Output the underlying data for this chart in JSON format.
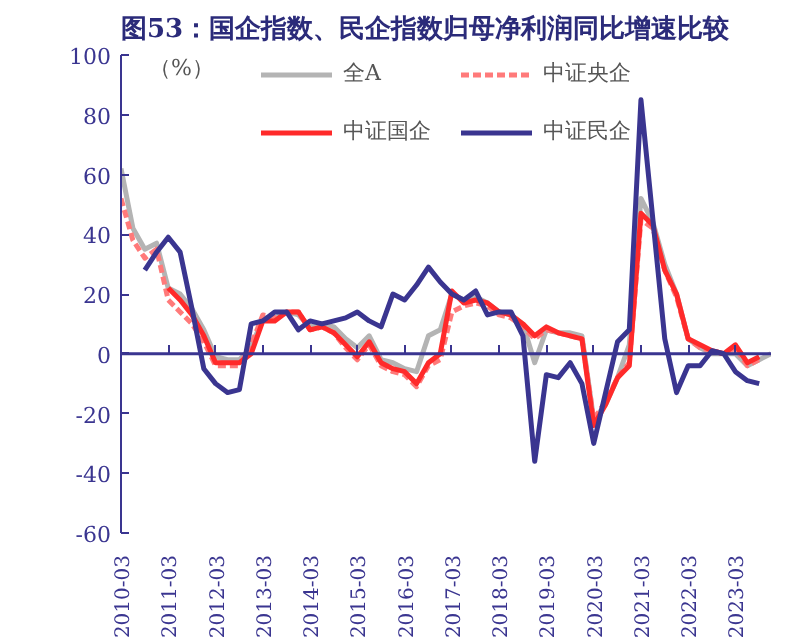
{
  "chart_data": {
    "type": "line",
    "title": "图53：国企指数、民企指数归母净利润同比增速比较",
    "ylabel": "（%）",
    "x": [
      "2010-03",
      "2010-06",
      "2010-09",
      "2010-12",
      "2011-03",
      "2011-06",
      "2011-09",
      "2011-12",
      "2012-03",
      "2012-06",
      "2012-09",
      "2012-12",
      "2013-03",
      "2013-06",
      "2013-09",
      "2013-12",
      "2014-03",
      "2014-06",
      "2014-09",
      "2014-12",
      "2015-03",
      "2015-06",
      "2015-09",
      "2015-12",
      "2016-03",
      "2016-06",
      "2016-09",
      "2016-12",
      "2017-03",
      "2017-06",
      "2017-09",
      "2017-12",
      "2018-03",
      "2018-06",
      "2018-09",
      "2018-12",
      "2019-03",
      "2019-06",
      "2019-09",
      "2019-12",
      "2020-03",
      "2020-06",
      "2020-09",
      "2020-12",
      "2021-03",
      "2021-06",
      "2021-09",
      "2021-12",
      "2022-03",
      "2022-06",
      "2022-09",
      "2022-12",
      "2023-03",
      "2023-06",
      "2023-09",
      "2023-12"
    ],
    "series": [
      {
        "name": "全A",
        "color": "#b4b4b4",
        "line_style": "solid",
        "values": [
          62,
          42,
          35,
          37,
          22,
          20,
          15,
          8,
          -1,
          -2,
          -2,
          2,
          12,
          12,
          14,
          13,
          9,
          10,
          9,
          5,
          2,
          6,
          -2,
          -3,
          -5,
          -6,
          6,
          8,
          20,
          18,
          19,
          17,
          14,
          13,
          10,
          -3,
          8,
          7,
          7,
          6,
          -22,
          -17,
          -8,
          3,
          52,
          44,
          30,
          20,
          5,
          2,
          0,
          0,
          0,
          -4,
          -2,
          0
        ]
      },
      {
        "name": "中证央企",
        "color": "#ff7a7a",
        "line_style": "dashed",
        "values": [
          52,
          38,
          32,
          35,
          18,
          14,
          10,
          4,
          -4,
          -4,
          -4,
          3,
          13,
          12,
          14,
          14,
          8,
          9,
          7,
          2,
          -2,
          3,
          -4,
          -6,
          -7,
          -11,
          -4,
          -2,
          14,
          16,
          17,
          16,
          13,
          12,
          9,
          5,
          8,
          7,
          6,
          5,
          -22,
          -16,
          -8,
          -3,
          45,
          42,
          28,
          19,
          5,
          2,
          1,
          0,
          2,
          -4,
          -2,
          null
        ]
      },
      {
        "name": "中证国企",
        "color": "#ff2a2a",
        "line_style": "solid",
        "values": [
          null,
          null,
          null,
          null,
          22,
          18,
          13,
          6,
          -3,
          -3,
          -3,
          0,
          11,
          11,
          14,
          14,
          8,
          9,
          7,
          3,
          -1,
          4,
          -3,
          -5,
          -6,
          -10,
          -3,
          0,
          21,
          17,
          18,
          17,
          14,
          13,
          10,
          6,
          9,
          7,
          6,
          5,
          -24,
          -17,
          -8,
          -4,
          47,
          43,
          28,
          20,
          5,
          3,
          1,
          0,
          3,
          -3,
          -1,
          null
        ]
      },
      {
        "name": "中证民企",
        "color": "#3a3590",
        "line_style": "solid",
        "values": [
          null,
          null,
          28,
          34,
          39,
          34,
          15,
          -5,
          -10,
          -13,
          -12,
          10,
          11,
          14,
          14,
          8,
          11,
          10,
          11,
          12,
          14,
          11,
          9,
          20,
          18,
          23,
          29,
          24,
          20,
          18,
          21,
          13,
          14,
          14,
          6,
          -36,
          -7,
          -8,
          -3,
          -10,
          -30,
          -13,
          4,
          8,
          85,
          45,
          5,
          -13,
          -4,
          -4,
          1,
          0,
          -6,
          -9,
          -10,
          null
        ]
      }
    ],
    "xlim": [
      "2010-03",
      "2023-12"
    ],
    "xticks": [
      "2010-03",
      "2011-03",
      "2012-03",
      "2013-03",
      "2014-03",
      "2015-03",
      "2016-03",
      "2017-03",
      "2018-03",
      "2019-03",
      "2020-03",
      "2021-03",
      "2022-03",
      "2023-03"
    ],
    "ylim": [
      -60,
      100
    ],
    "yticks": [
      -60,
      -40,
      -20,
      0,
      20,
      40,
      60,
      80,
      100
    ],
    "ref_lines": [
      {
        "axis": "y",
        "value": 0,
        "color": "#3a3590"
      }
    ],
    "grid": false,
    "legend": "top",
    "marker": "none"
  }
}
